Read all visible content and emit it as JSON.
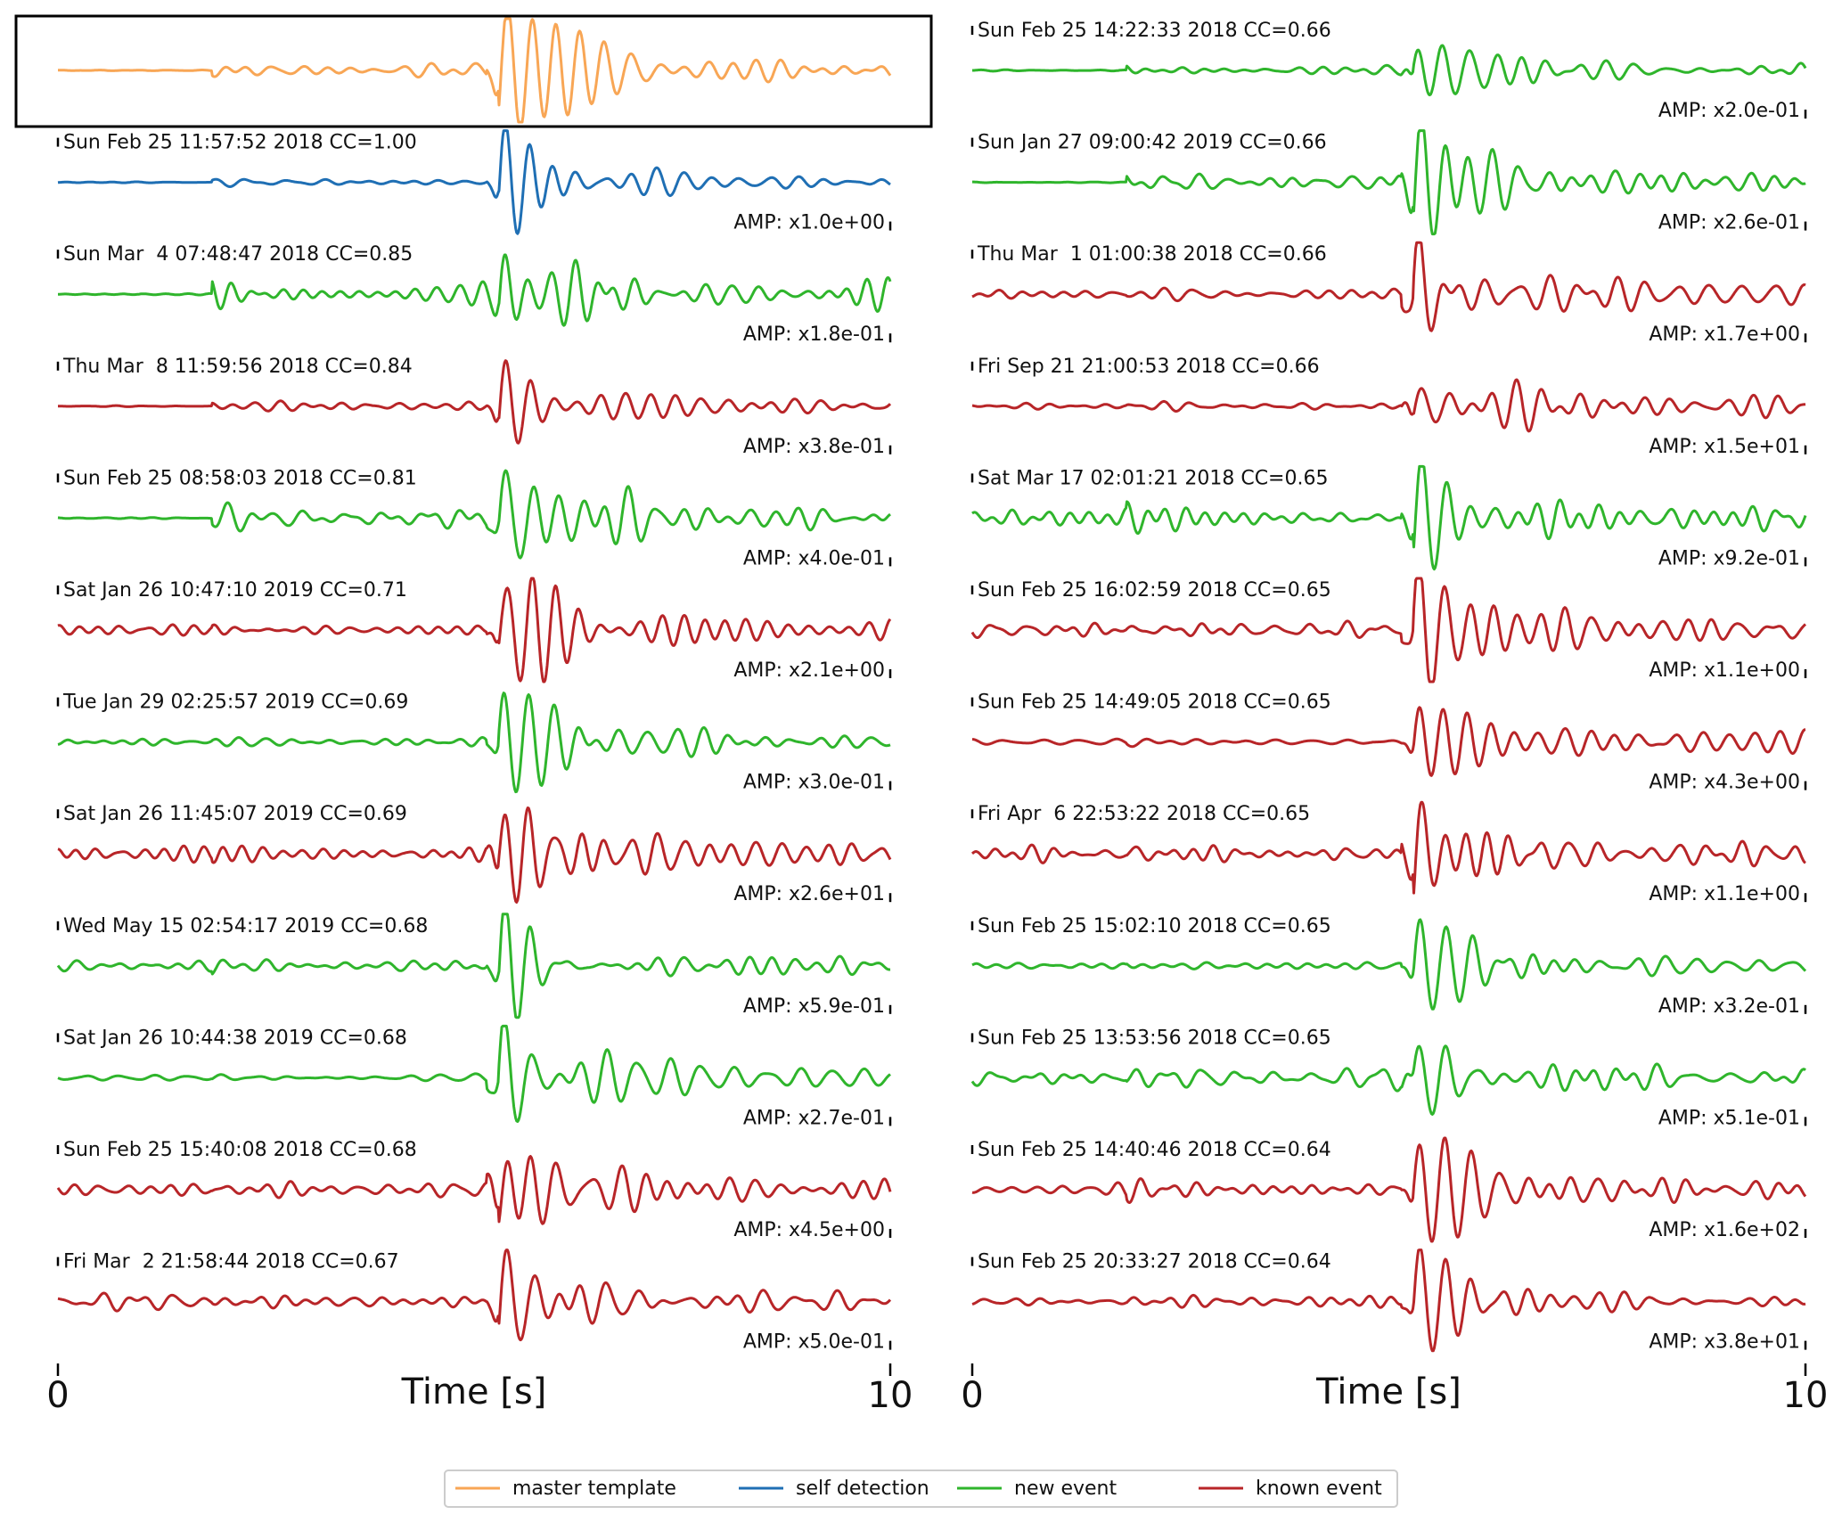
{
  "chart_data": {
    "type": "waveform",
    "xlabel": "Time [s]",
    "xlim": [
      0,
      10
    ],
    "xticks": [
      0,
      10
    ],
    "legend": "lower center",
    "series": [
      {
        "name": "master template",
        "color": "#f8a655"
      },
      {
        "name": "self detection",
        "color": "#1f6fb4"
      },
      {
        "name": "new event",
        "color": "#2fb52c"
      },
      {
        "name": "known event",
        "color": "#b82528"
      }
    ],
    "columns": [
      [
        {
          "kind": "master template"
        },
        {
          "kind": "self detection",
          "label": "Sun Feb 25 11:57:52 2018 CC=1.00",
          "amp": "AMP: x1.0e+00"
        },
        {
          "kind": "new event",
          "label": "Sun Mar  4 07:48:47 2018 CC=0.85",
          "amp": "AMP: x1.8e-01"
        },
        {
          "kind": "known event",
          "label": "Thu Mar  8 11:59:56 2018 CC=0.84",
          "amp": "AMP: x3.8e-01"
        },
        {
          "kind": "new event",
          "label": "Sun Feb 25 08:58:03 2018 CC=0.81",
          "amp": "AMP: x4.0e-01"
        },
        {
          "kind": "known event",
          "label": "Sat Jan 26 10:47:10 2019 CC=0.71",
          "amp": "AMP: x2.1e+00"
        },
        {
          "kind": "new event",
          "label": "Tue Jan 29 02:25:57 2019 CC=0.69",
          "amp": "AMP: x3.0e-01"
        },
        {
          "kind": "known event",
          "label": "Sat Jan 26 11:45:07 2019 CC=0.69",
          "amp": "AMP: x2.6e+01"
        },
        {
          "kind": "new event",
          "label": "Wed May 15 02:54:17 2019 CC=0.68",
          "amp": "AMP: x5.9e-01"
        },
        {
          "kind": "new event",
          "label": "Sat Jan 26 10:44:38 2019 CC=0.68",
          "amp": "AMP: x2.7e-01"
        },
        {
          "kind": "known event",
          "label": "Sun Feb 25 15:40:08 2018 CC=0.68",
          "amp": "AMP: x4.5e+00"
        },
        {
          "kind": "known event",
          "label": "Fri Mar  2 21:58:44 2018 CC=0.67",
          "amp": "AMP: x5.0e-01"
        }
      ],
      [
        {
          "kind": "new event",
          "label": "Sun Feb 25 14:22:33 2018 CC=0.66",
          "amp": "AMP: x2.0e-01"
        },
        {
          "kind": "new event",
          "label": "Sun Jan 27 09:00:42 2019 CC=0.66",
          "amp": "AMP: x2.6e-01"
        },
        {
          "kind": "known event",
          "label": "Thu Mar  1 01:00:38 2018 CC=0.66",
          "amp": "AMP: x1.7e+00"
        },
        {
          "kind": "known event",
          "label": "Fri Sep 21 21:00:53 2018 CC=0.66",
          "amp": "AMP: x1.5e+01"
        },
        {
          "kind": "new event",
          "label": "Sat Mar 17 02:01:21 2018 CC=0.65",
          "amp": "AMP: x9.2e-01"
        },
        {
          "kind": "known event",
          "label": "Sun Feb 25 16:02:59 2018 CC=0.65",
          "amp": "AMP: x1.1e+00"
        },
        {
          "kind": "known event",
          "label": "Sun Feb 25 14:49:05 2018 CC=0.65",
          "amp": "AMP: x4.3e+00"
        },
        {
          "kind": "known event",
          "label": "Fri Apr  6 22:53:22 2018 CC=0.65",
          "amp": "AMP: x1.1e+00"
        },
        {
          "kind": "new event",
          "label": "Sun Feb 25 15:02:10 2018 CC=0.65",
          "amp": "AMP: x3.2e-01"
        },
        {
          "kind": "new event",
          "label": "Sun Feb 25 13:53:56 2018 CC=0.65",
          "amp": "AMP: x5.1e-01"
        },
        {
          "kind": "known event",
          "label": "Sun Feb 25 14:40:46 2018 CC=0.64",
          "amp": "AMP: x1.6e+02"
        },
        {
          "kind": "known event",
          "label": "Sun Feb 25 20:33:27 2018 CC=0.64",
          "amp": "AMP: x3.8e+01"
        }
      ]
    ]
  }
}
